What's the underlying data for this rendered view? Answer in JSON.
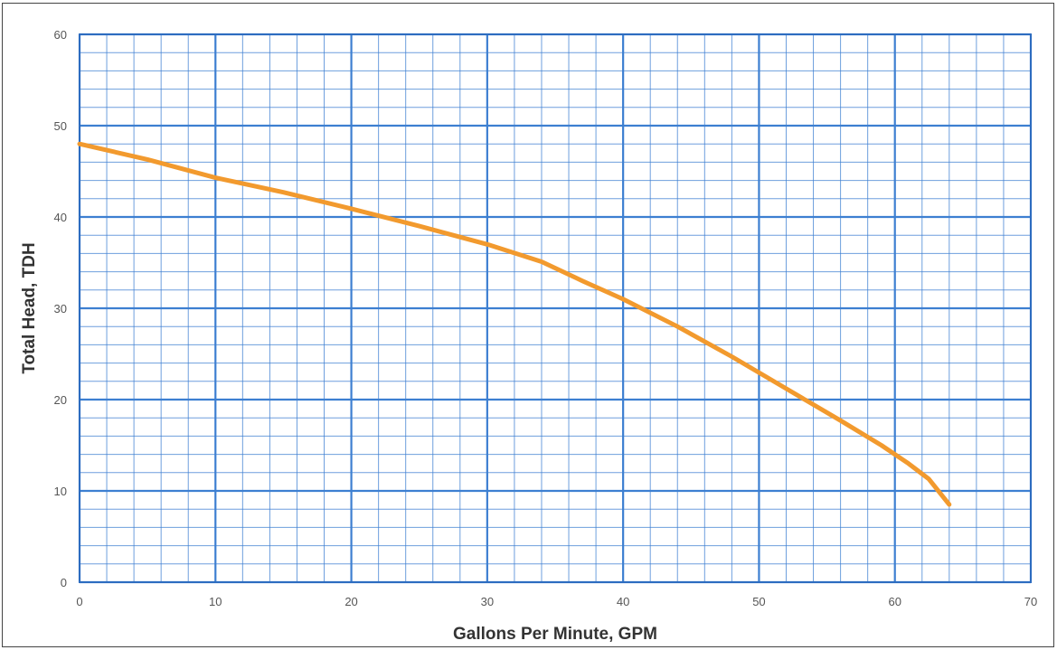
{
  "chart_data": {
    "type": "line",
    "title": "",
    "xlabel": "Gallons Per Minute, GPM",
    "ylabel": "Total Head, TDH",
    "xlim": [
      0,
      70
    ],
    "ylim": [
      0,
      60
    ],
    "x_ticks": [
      "0",
      "10",
      "20",
      "30",
      "40",
      "50",
      "60",
      "70"
    ],
    "y_ticks": [
      "0",
      "10",
      "20",
      "30",
      "40",
      "50",
      "60"
    ],
    "grid": true,
    "grid_minor_step_x": 2,
    "grid_minor_step_y": 2,
    "legend": "none",
    "colors": {
      "line": "#f29a2e",
      "grid": "#3d7fd1",
      "frame": "#444444"
    },
    "series": [
      {
        "x": [
          0,
          5,
          10,
          15,
          20,
          25,
          30,
          34,
          37,
          40,
          44,
          48,
          52,
          56,
          59,
          61,
          62.5,
          64
        ],
        "y": [
          48,
          46.3,
          44.3,
          42.7,
          40.9,
          39,
          37,
          35.1,
          33,
          31,
          28,
          24.7,
          21.2,
          17.7,
          15,
          13,
          11.3,
          8.5
        ]
      }
    ]
  }
}
